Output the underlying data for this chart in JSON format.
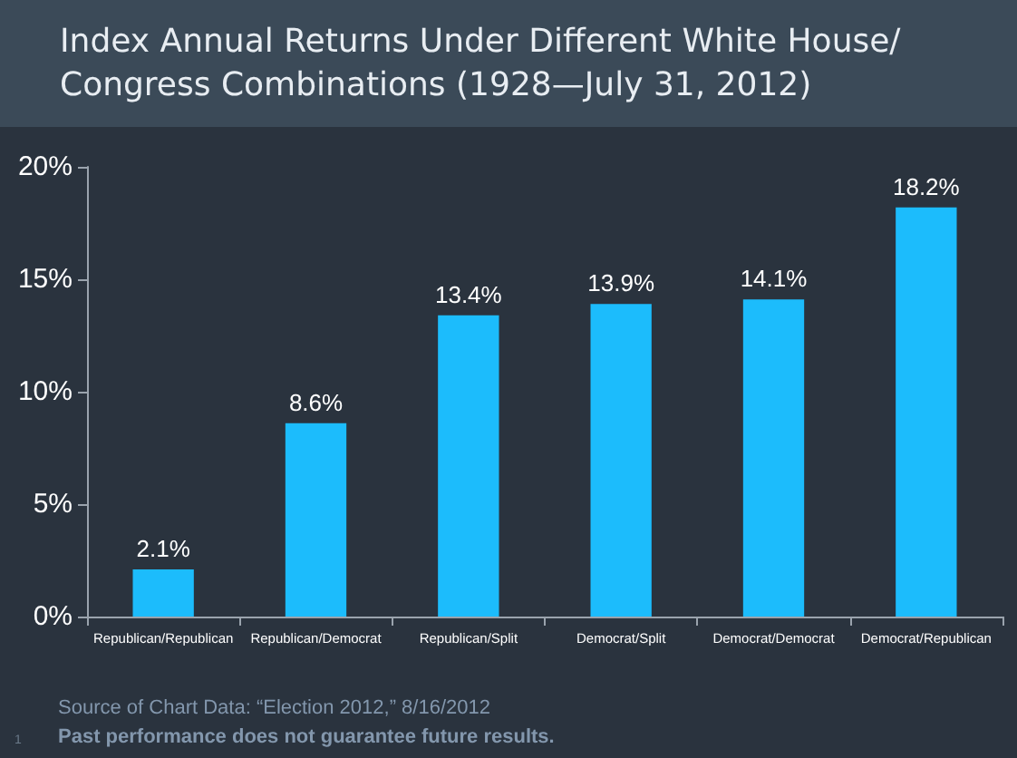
{
  "chart_data": {
    "type": "bar",
    "title": "Index Annual Returns Under Different White House/Congress Combinations (1928—July 31, 2012)",
    "categories": [
      "Republican/Republican",
      "Republican/Democrat",
      "Republican/Split",
      "Democrat/Split",
      "Democrat/Democrat",
      "Democrat/Republican"
    ],
    "values": [
      2.1,
      8.6,
      13.4,
      13.9,
      14.1,
      18.2
    ],
    "value_labels": [
      "2.1%",
      "8.6%",
      "13.4%",
      "13.9%",
      "14.1%",
      "18.2%"
    ],
    "color": "#1cbcfc",
    "ylim": [
      0,
      20
    ],
    "yticks": [
      {
        "value": 0,
        "label": "0%"
      },
      {
        "value": 5,
        "label": "5%"
      },
      {
        "value": 10,
        "label": "10%"
      },
      {
        "value": 15,
        "label": "15%"
      },
      {
        "value": 20,
        "label": "20%"
      }
    ],
    "grid": false,
    "annotations": [
      "Source of Chart Data: “Election 2012,” 8/16/2012",
      "Past performance does not guarantee future results.",
      "1"
    ]
  }
}
